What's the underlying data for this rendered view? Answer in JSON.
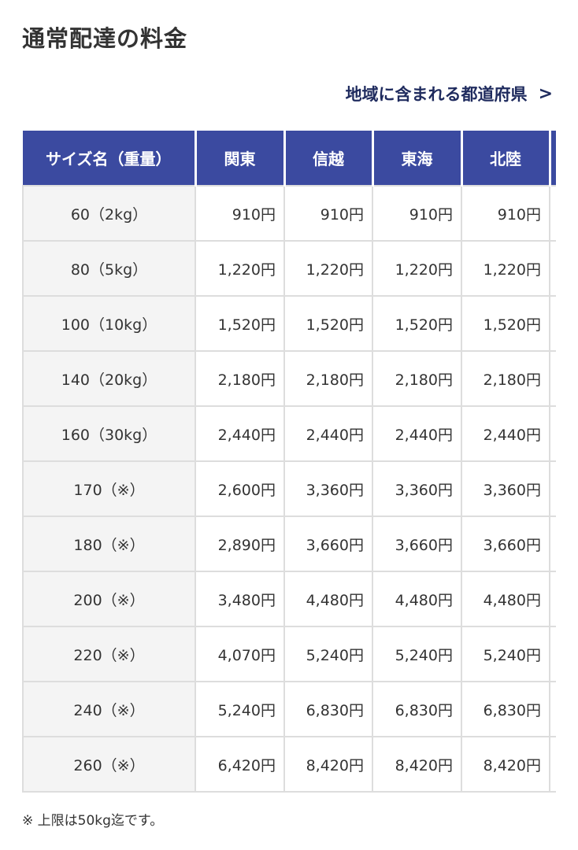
{
  "title": "通常配達の料金",
  "link": {
    "label": "地域に含まれる都道府県",
    "icon": "chevron-right-icon"
  },
  "colors": {
    "header": "#3b4aa0",
    "link": "#1f2b5e"
  },
  "table": {
    "headers": [
      "サイズ名（重量）",
      "関東",
      "信越",
      "東海",
      "北陸"
    ],
    "rows": [
      [
        "60（2kg）",
        "910円",
        "910円",
        "910円",
        "910円"
      ],
      [
        "80（5kg）",
        "1,220円",
        "1,220円",
        "1,220円",
        "1,220円"
      ],
      [
        "100（10kg）",
        "1,520円",
        "1,520円",
        "1,520円",
        "1,520円"
      ],
      [
        "140（20kg）",
        "2,180円",
        "2,180円",
        "2,180円",
        "2,180円"
      ],
      [
        "160（30kg）",
        "2,440円",
        "2,440円",
        "2,440円",
        "2,440円"
      ],
      [
        "170（※）",
        "2,600円",
        "3,360円",
        "3,360円",
        "3,360円"
      ],
      [
        "180（※）",
        "2,890円",
        "3,660円",
        "3,660円",
        "3,660円"
      ],
      [
        "200（※）",
        "3,480円",
        "4,480円",
        "4,480円",
        "4,480円"
      ],
      [
        "220（※）",
        "4,070円",
        "5,240円",
        "5,240円",
        "5,240円"
      ],
      [
        "240（※）",
        "5,240円",
        "6,830円",
        "6,830円",
        "6,830円"
      ],
      [
        "260（※）",
        "6,420円",
        "8,420円",
        "8,420円",
        "8,420円"
      ]
    ]
  },
  "note": "※ 上限は50kg迄です。"
}
